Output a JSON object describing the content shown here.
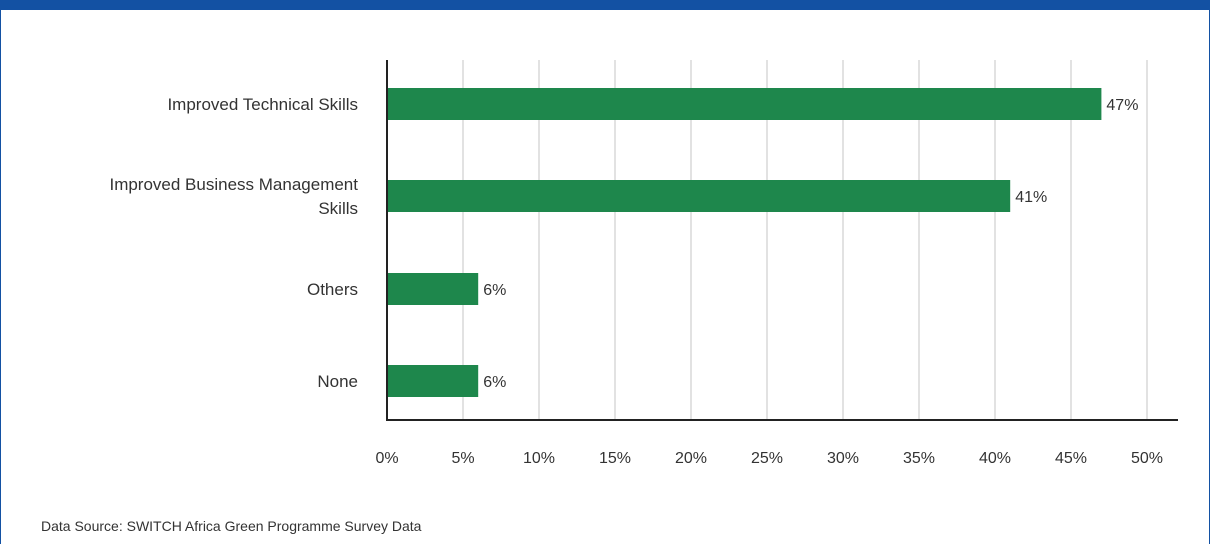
{
  "chart_data": {
    "type": "bar",
    "orientation": "horizontal",
    "categories": [
      [
        "Improved Technical Skills"
      ],
      [
        "Improved Business Management",
        "Skills"
      ],
      [
        "Others"
      ],
      [
        "None"
      ]
    ],
    "values": [
      47,
      41,
      6,
      6
    ],
    "value_labels": [
      "47%",
      "41%",
      "6%",
      "6%"
    ],
    "xlim": [
      0,
      50
    ],
    "xticks": [
      0,
      5,
      10,
      15,
      20,
      25,
      30,
      35,
      40,
      45,
      50
    ],
    "xtick_labels": [
      "0%",
      "5%",
      "10%",
      "15%",
      "20%",
      "25%",
      "30%",
      "35%",
      "40%",
      "45%",
      "50%"
    ],
    "grid": "vertical",
    "legend": "none"
  },
  "colors": {
    "bar": "#1e874c",
    "grid": "#c4c4c4",
    "axis": "#222222",
    "text": "#333333",
    "frame": "#1351a3"
  },
  "source_text": "Data Source: SWITCH Africa Green Programme Survey Data"
}
